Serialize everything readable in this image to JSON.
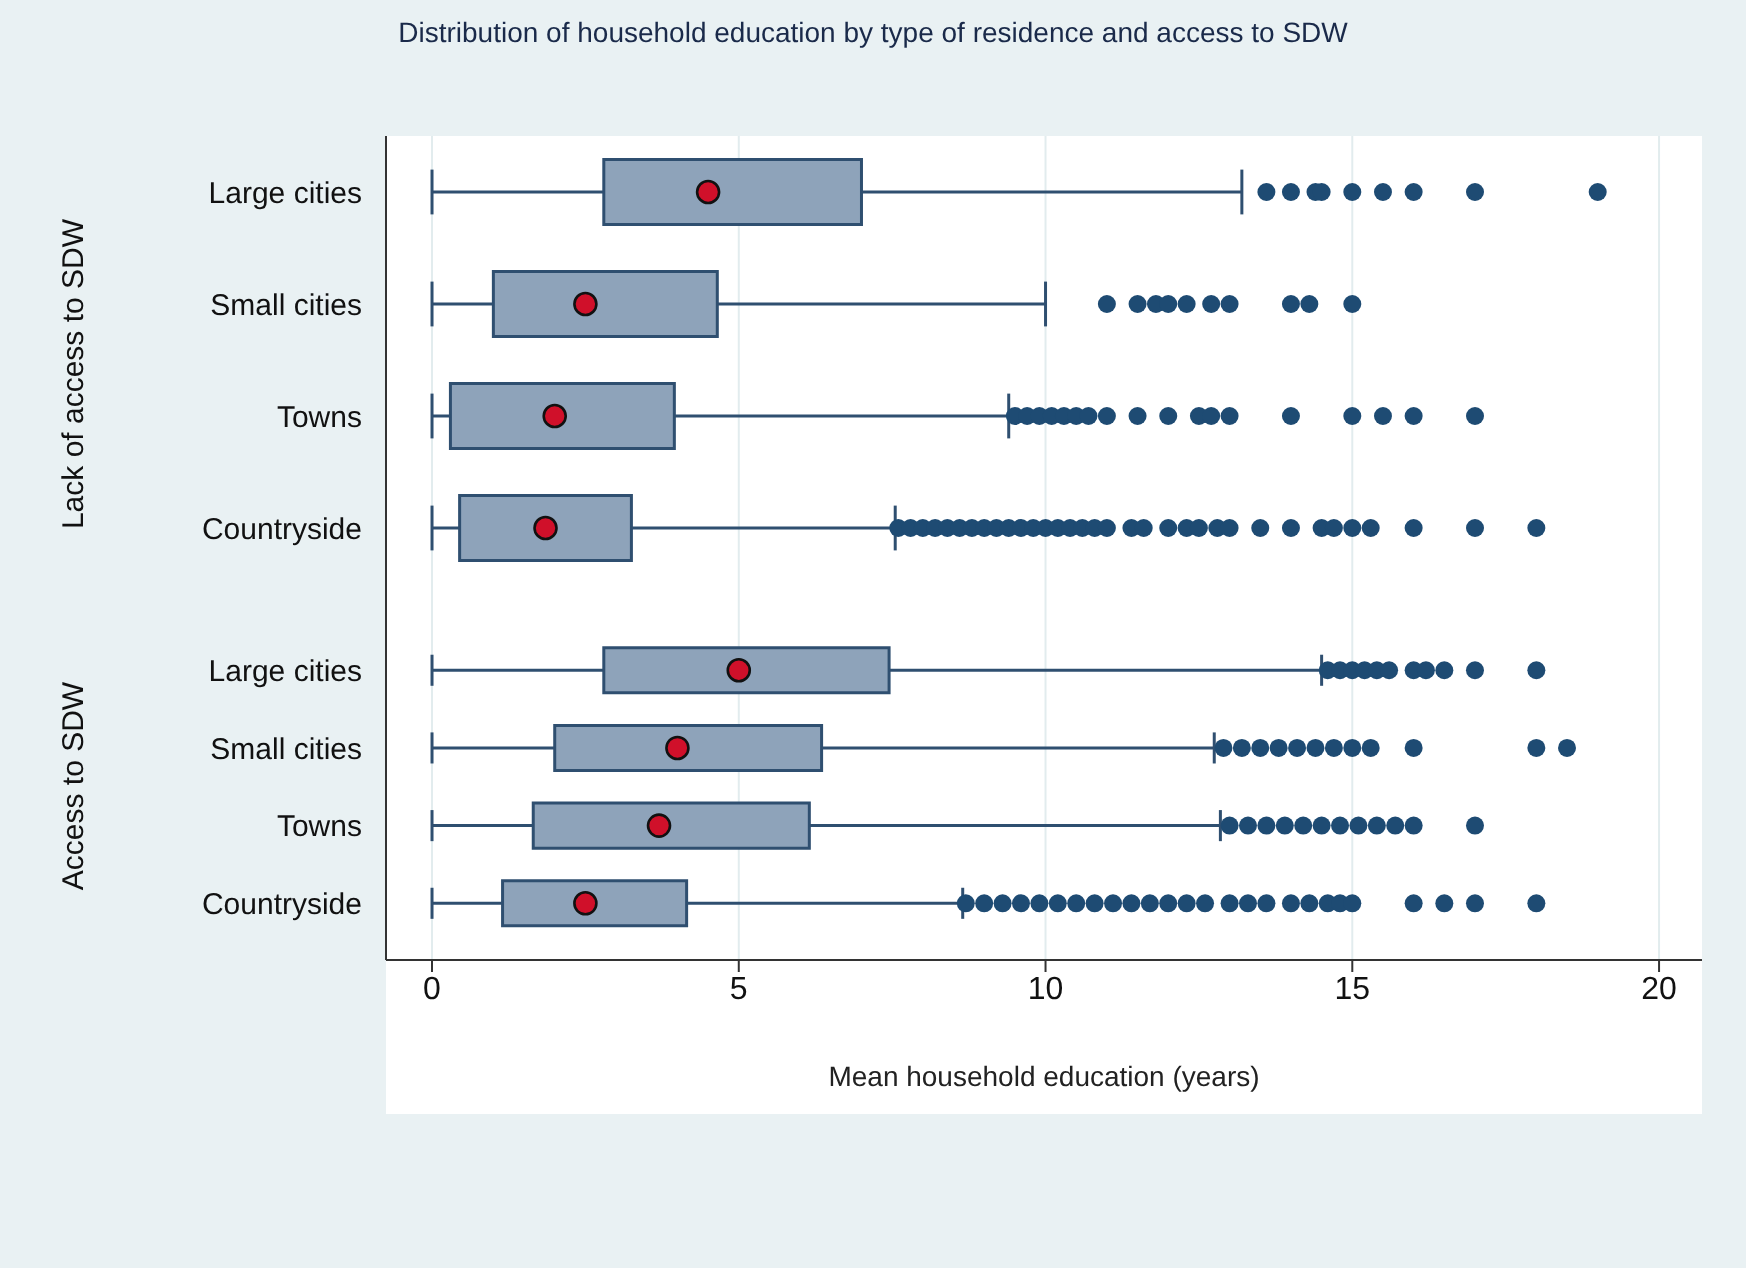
{
  "chart_data": [
    {
      "type": "box",
      "title": "Distribution of household education by type of residence and access to SDW",
      "ylabel": "Lack of access to SDW",
      "orientation": "horizontal",
      "categories": [
        "Large cities",
        "Small cities",
        "Towns",
        "Countryside"
      ],
      "color": "#8ea3ba",
      "marker": "circle",
      "grid": "x",
      "tick_labels": "y",
      "xlim": [
        -0.75,
        20.7
      ],
      "xticks": [
        0,
        5,
        10,
        15,
        20
      ],
      "boxes": [
        {
          "low": 0,
          "q1": 2.8,
          "median": 4.5,
          "q3": 7.0,
          "high": 13.2,
          "outliers": [
            13.6,
            14.0,
            14.4,
            14.5,
            15.0,
            15.5,
            16.0,
            17.0,
            19.0
          ]
        },
        {
          "low": 0,
          "q1": 1.0,
          "median": 2.5,
          "q3": 4.65,
          "high": 10.0,
          "outliers": [
            11.0,
            11.5,
            11.8,
            12.0,
            12.3,
            12.7,
            13.0,
            14.0,
            14.3,
            15.0
          ]
        },
        {
          "low": 0,
          "q1": 0.3,
          "median": 2.0,
          "q3": 3.95,
          "high": 9.4,
          "outliers": [
            9.5,
            9.7,
            9.9,
            10.1,
            10.3,
            10.5,
            10.7,
            11.0,
            11.5,
            12.0,
            12.5,
            12.7,
            13.0,
            14.0,
            15.0,
            15.5,
            16.0,
            17.0
          ]
        },
        {
          "low": 0,
          "q1": 0.45,
          "median": 1.85,
          "q3": 3.25,
          "high": 7.55,
          "outliers": [
            7.6,
            7.8,
            8.0,
            8.2,
            8.4,
            8.6,
            8.8,
            9.0,
            9.2,
            9.4,
            9.6,
            9.8,
            10.0,
            10.2,
            10.4,
            10.6,
            10.8,
            11.0,
            11.4,
            11.6,
            12.0,
            12.3,
            12.5,
            12.8,
            13.0,
            13.5,
            14.0,
            14.5,
            14.7,
            15.0,
            15.3,
            16.0,
            17.0,
            18.0
          ]
        }
      ]
    },
    {
      "type": "box",
      "ylabel": "Access to SDW",
      "xlabel": "Mean household education (years)",
      "orientation": "horizontal",
      "categories": [
        "Large cities",
        "Small cities",
        "Towns",
        "Countryside"
      ],
      "color": "#8ea3ba",
      "marker": "circle",
      "grid": "x",
      "xlim": [
        -0.75,
        20.7
      ],
      "xticks": [
        0,
        5,
        10,
        15,
        20
      ],
      "boxes": [
        {
          "low": 0,
          "q1": 2.8,
          "median": 5.0,
          "q3": 7.45,
          "high": 14.5,
          "outliers": [
            14.6,
            14.8,
            15.0,
            15.2,
            15.4,
            15.6,
            16.0,
            16.2,
            16.5,
            17.0,
            18.0
          ]
        },
        {
          "low": 0,
          "q1": 2.0,
          "median": 4.0,
          "q3": 6.35,
          "high": 12.75,
          "outliers": [
            12.9,
            13.2,
            13.5,
            13.8,
            14.1,
            14.4,
            14.7,
            15.0,
            15.3,
            16.0,
            18.0,
            18.5
          ]
        },
        {
          "low": 0,
          "q1": 1.65,
          "median": 3.7,
          "q3": 6.15,
          "high": 12.85,
          "outliers": [
            13.0,
            13.3,
            13.6,
            13.9,
            14.2,
            14.5,
            14.8,
            15.1,
            15.4,
            15.7,
            16.0,
            17.0
          ]
        },
        {
          "low": 0,
          "q1": 1.15,
          "median": 2.5,
          "q3": 4.15,
          "high": 8.65,
          "outliers": [
            8.7,
            9.0,
            9.3,
            9.6,
            9.9,
            10.2,
            10.5,
            10.8,
            11.1,
            11.4,
            11.7,
            12.0,
            12.3,
            12.6,
            13.0,
            13.3,
            13.6,
            14.0,
            14.3,
            14.6,
            14.8,
            15.0,
            16.0,
            16.5,
            17.0,
            18.0
          ]
        }
      ]
    }
  ]
}
